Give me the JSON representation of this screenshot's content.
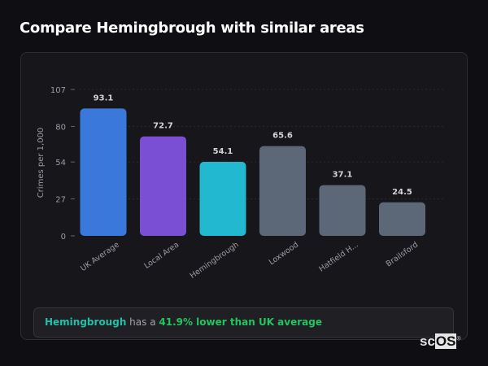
{
  "page": {
    "title": "Compare Hemingbrough with similar areas"
  },
  "summary": {
    "name": "Hemingbrough",
    "middle": " has a ",
    "difference": "41.9% lower than UK average"
  },
  "logo": {
    "text_a": "sc",
    "text_b": "OS",
    "mark": "®"
  },
  "chart_data": {
    "type": "bar",
    "categories": [
      "UK Average",
      "Local Area",
      "Hemingbrough",
      "Loxwood",
      "Hatfield H...",
      "Brailsford"
    ],
    "values": [
      93.1,
      72.7,
      54.1,
      65.6,
      37.1,
      24.5
    ],
    "data_labels": [
      "93.1",
      "72.7",
      "54.1",
      "65.6",
      "37.1",
      "24.5"
    ],
    "colors": [
      "#3b78dc",
      "#7b4fd4",
      "#22b8cf",
      "#5c6778",
      "#5c6778",
      "#5c6778"
    ],
    "ylabel": "Crimes per 1,000",
    "yticks": [
      0,
      27,
      54,
      80,
      107
    ],
    "ylim": [
      0,
      107
    ],
    "grid": true,
    "legend": "none"
  }
}
